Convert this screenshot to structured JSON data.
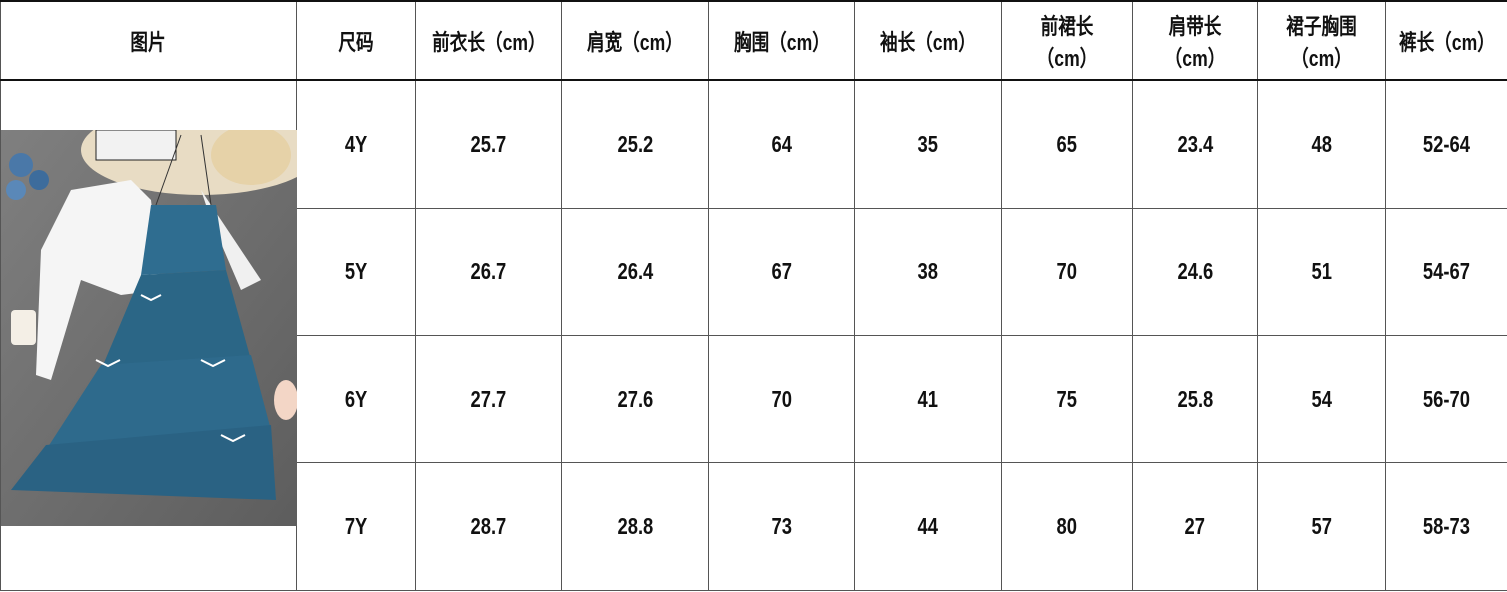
{
  "table": {
    "headers": [
      "图片",
      "尺码",
      "前衣长（cm）",
      "肩宽（cm）",
      "胸围（cm）",
      "袖长（cm）",
      "前裙长（cm）",
      "肩带长（cm）",
      "裙子胸围（cm）",
      "裤长（cm）"
    ],
    "rows": [
      [
        "4Y",
        "25.7",
        "25.2",
        "64",
        "35",
        "65",
        "23.4",
        "48",
        "52-64"
      ],
      [
        "5Y",
        "26.7",
        "26.4",
        "67",
        "38",
        "70",
        "24.6",
        "51",
        "54-67"
      ],
      [
        "6Y",
        "27.7",
        "27.6",
        "70",
        "41",
        "75",
        "25.8",
        "54",
        "56-70"
      ],
      [
        "7Y",
        "28.7",
        "28.8",
        "73",
        "44",
        "80",
        "27",
        "57",
        "58-73"
      ]
    ]
  },
  "image": {
    "subject": "product-photo",
    "colors": {
      "dress": "#2e6a8c",
      "cardigan": "#f4f4f4",
      "floor": "#6b6b6b"
    }
  }
}
